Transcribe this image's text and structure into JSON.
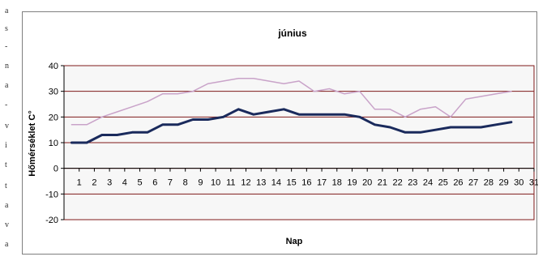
{
  "page_edge_letters": [
    "a",
    "s",
    "-",
    "n",
    "a",
    "-",
    "v",
    "i",
    "t",
    "t",
    "a",
    "v",
    "a"
  ],
  "chart_data": {
    "type": "line",
    "title": "június",
    "xlabel": "Nap",
    "ylabel": "Hőmérséklet C°",
    "categories": [
      1,
      2,
      3,
      4,
      5,
      6,
      7,
      8,
      9,
      10,
      11,
      12,
      13,
      14,
      15,
      16,
      17,
      18,
      19,
      20,
      21,
      22,
      23,
      24,
      25,
      26,
      27,
      28,
      29,
      30,
      31
    ],
    "ylim": [
      -20,
      40
    ],
    "yticks": [
      -20,
      -10,
      0,
      10,
      20,
      30,
      40
    ],
    "grid": true,
    "legend": "none",
    "plot_area_color": "#f7f7f7",
    "frame_color": "#7f1a1a",
    "series": [
      {
        "color": "#c9a3c9",
        "width": 1.5,
        "values": [
          17,
          17,
          20,
          22,
          24,
          26,
          29,
          29,
          30,
          33,
          34,
          35,
          35,
          34,
          33,
          34,
          30,
          31,
          29,
          30,
          23,
          23,
          20,
          23,
          24,
          20,
          27,
          28,
          29,
          30,
          null
        ]
      },
      {
        "color": "#1a2a5c",
        "width": 3,
        "values": [
          10,
          10,
          13,
          13,
          14,
          14,
          17,
          17,
          19,
          19,
          20,
          23,
          21,
          22,
          23,
          21,
          21,
          21,
          21,
          20,
          17,
          16,
          14,
          14,
          15,
          16,
          16,
          16,
          17,
          18,
          null
        ]
      }
    ]
  }
}
